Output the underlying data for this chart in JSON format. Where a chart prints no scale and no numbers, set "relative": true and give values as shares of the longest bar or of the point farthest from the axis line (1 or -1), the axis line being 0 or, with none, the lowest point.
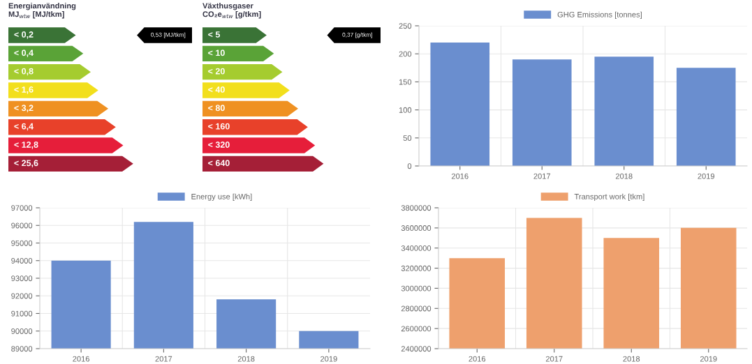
{
  "chart_data": [
    {
      "type": "bar",
      "orientation": "horizontal",
      "relative": true,
      "title": "Energianvändning\nMJ$_{wtw}$ [MJ/tkm]",
      "categories": [
        "< 0,2",
        "< 0,4",
        "< 0,8",
        "< 1,6",
        "< 3,2",
        "< 6,4",
        "< 12,8",
        "< 25,6"
      ],
      "values": [
        0.54,
        0.6,
        0.66,
        0.72,
        0.8,
        0.86,
        0.92,
        1
      ],
      "colors": [
        "#3a7336",
        "#5aa337",
        "#a5cc2f",
        "#f2df1c",
        "#ef9122",
        "#e8412a",
        "#e61e3a",
        "#a51f37"
      ],
      "annotations": [
        "0,53 [MJ/tkm]"
      ]
    },
    {
      "type": "bar",
      "orientation": "horizontal",
      "relative": true,
      "title": "Växthusgaser\nCO₂e$_{wtw}$ [g/tkm]",
      "categories": [
        "< 5",
        "< 10",
        "< 20",
        "< 40",
        "< 80",
        "< 160",
        "< 320",
        "< 640"
      ],
      "values": [
        0.53,
        0.59,
        0.66,
        0.72,
        0.79,
        0.87,
        0.93,
        1
      ],
      "colors": [
        "#3a7336",
        "#5aa337",
        "#a5cc2f",
        "#f2df1c",
        "#ef9122",
        "#e8412a",
        "#e61e3a",
        "#a51f37"
      ],
      "annotations": [
        "0,37 [g/tkm]"
      ]
    },
    {
      "type": "bar",
      "categories": [
        "2016",
        "2017",
        "2018",
        "2019"
      ],
      "series": [
        {
          "name": "GHG Emissions [tonnes]",
          "color": "#6a8ecf",
          "values": [
            220,
            190,
            195,
            175
          ]
        }
      ],
      "ylim": [
        0,
        250
      ],
      "yticks": [
        0,
        50,
        100,
        150,
        200,
        250
      ],
      "grid": true,
      "legend": "top"
    },
    {
      "type": "bar",
      "categories": [
        "2016",
        "2017",
        "2018",
        "2019"
      ],
      "series": [
        {
          "name": "Energy use [kWh]",
          "color": "#6a8ecf",
          "values": [
            94000,
            96200,
            91800,
            90000
          ]
        }
      ],
      "ylim": [
        89000,
        97000
      ],
      "yticks": [
        89000,
        90000,
        91000,
        92000,
        93000,
        94000,
        95000,
        96000,
        97000
      ],
      "grid": true,
      "legend": "top"
    },
    {
      "type": "bar",
      "categories": [
        "2016",
        "2017",
        "2018",
        "2019"
      ],
      "series": [
        {
          "name": "Transport work [tkm]",
          "color": "#eea06d",
          "values": [
            3300000,
            3700000,
            3500000,
            3600000
          ]
        }
      ],
      "ylim": [
        2400000,
        3800000
      ],
      "yticks": [
        2400000,
        2600000,
        2800000,
        3000000,
        3200000,
        3400000,
        3600000,
        3800000
      ],
      "grid": true,
      "legend": "top"
    }
  ]
}
